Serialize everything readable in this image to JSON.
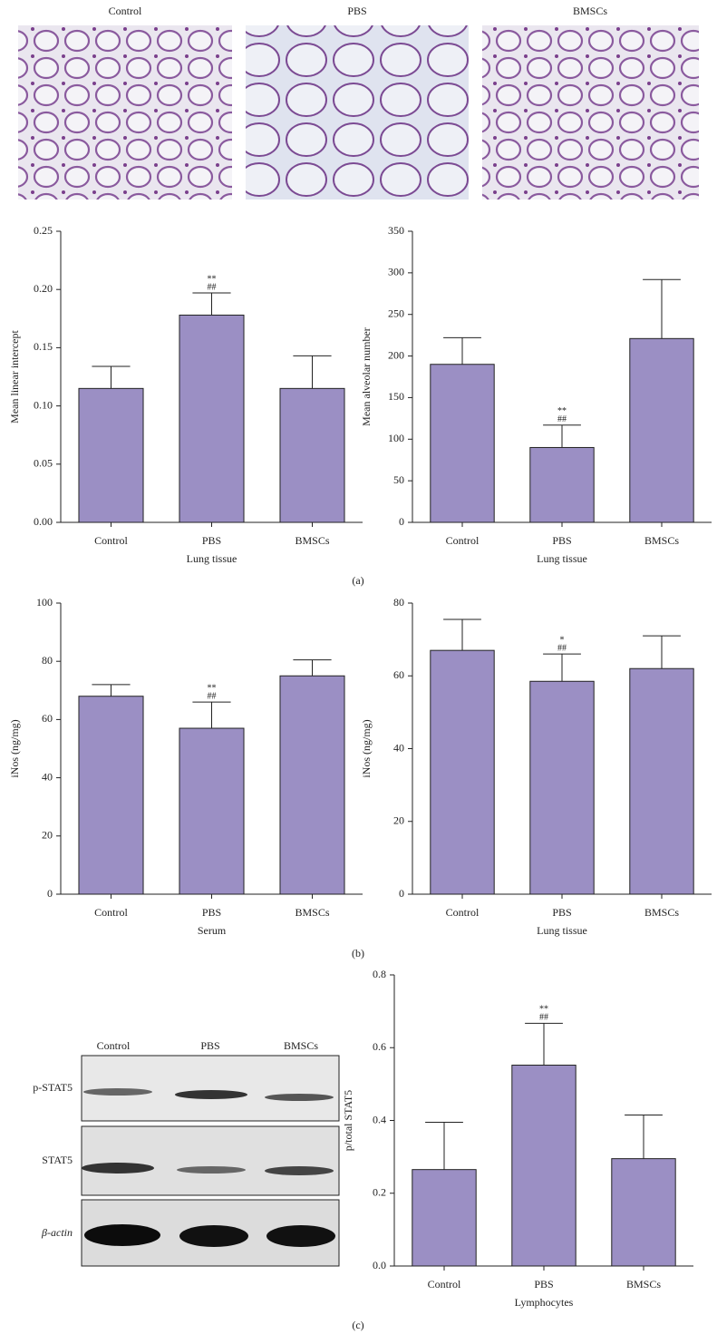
{
  "micrographs": {
    "labels": [
      "Control",
      "PBS",
      "BMSCs"
    ]
  },
  "panel_labels": [
    "(a)",
    "(b)",
    "(c)"
  ],
  "western_blot": {
    "lanes": [
      "Control",
      "PBS",
      "BMSCs"
    ],
    "rows": [
      "p-STAT5",
      "STAT5",
      "β-actin"
    ]
  },
  "chart_data": [
    {
      "type": "bar",
      "y_label": "Mean linear intercept",
      "x_label": "Lung tissue",
      "categories": [
        "Control",
        "PBS",
        "BMSCs"
      ],
      "values": [
        0.115,
        0.178,
        0.115
      ],
      "errors": [
        0.019,
        0.019,
        0.028
      ],
      "markers": [
        [],
        [
          "**",
          "##"
        ],
        []
      ],
      "color": "#9b8fc4",
      "ylim": [
        0,
        0.25
      ],
      "yticks": [
        {
          "value": 0,
          "label": "0.00"
        },
        {
          "value": 0.05,
          "label": "0.05"
        },
        {
          "value": 0.1,
          "label": "0.10"
        },
        {
          "value": 0.15,
          "label": "0.15"
        },
        {
          "value": 0.2,
          "label": "0.20"
        },
        {
          "value": 0.25,
          "label": "0.25"
        }
      ]
    },
    {
      "type": "bar",
      "y_label": "Mean alveolar number",
      "x_label": "Lung tissue",
      "categories": [
        "Control",
        "PBS",
        "BMSCs"
      ],
      "values": [
        190,
        90,
        221
      ],
      "errors": [
        32,
        27,
        71
      ],
      "markers": [
        [],
        [
          "**",
          "##"
        ],
        []
      ],
      "color": "#9b8fc4",
      "ylim": [
        0,
        350
      ],
      "yticks": [
        0,
        50,
        100,
        150,
        200,
        250,
        300,
        350
      ]
    },
    {
      "type": "bar",
      "y_label": "iNos (ng/mg)",
      "x_label": "Serum",
      "categories": [
        "Control",
        "PBS",
        "BMSCs"
      ],
      "values": [
        68,
        57,
        75
      ],
      "errors": [
        4,
        9,
        5.5
      ],
      "markers": [
        [],
        [
          "**",
          "##"
        ],
        []
      ],
      "color": "#9b8fc4",
      "ylim": [
        0,
        100
      ],
      "yticks": [
        0,
        20,
        40,
        60,
        80,
        100
      ]
    },
    {
      "type": "bar",
      "y_label": "iNos (ng/mg)",
      "x_label": "Lung tissue",
      "categories": [
        "Control",
        "PBS",
        "BMSCs"
      ],
      "values": [
        67,
        58.5,
        62
      ],
      "errors": [
        8.5,
        7.5,
        9
      ],
      "markers": [
        [],
        [
          "*",
          "##"
        ],
        []
      ],
      "color": "#9b8fc4",
      "ylim": [
        0,
        80
      ],
      "yticks": [
        0,
        20,
        40,
        60,
        80
      ]
    },
    {
      "type": "bar",
      "y_label": "p/total STAT5",
      "x_label": "Lymphocytes",
      "categories": [
        "Control",
        "PBS",
        "BMSCs"
      ],
      "values": [
        0.265,
        0.552,
        0.295
      ],
      "errors": [
        0.13,
        0.115,
        0.12
      ],
      "markers": [
        [],
        [
          "**",
          "##"
        ],
        []
      ],
      "color": "#9b8fc4",
      "ylim": [
        0,
        0.8
      ],
      "yticks": [
        {
          "value": 0,
          "label": "0.0"
        },
        {
          "value": 0.2,
          "label": "0.2"
        },
        {
          "value": 0.4,
          "label": "0.4"
        },
        {
          "value": 0.6,
          "label": "0.6"
        },
        {
          "value": 0.8,
          "label": "0.8"
        }
      ]
    }
  ]
}
